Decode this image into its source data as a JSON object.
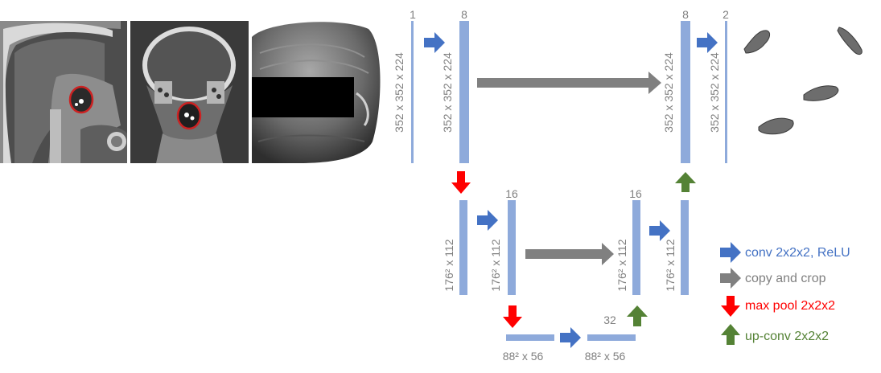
{
  "colors": {
    "bar": "#8eaadb",
    "conv": "#4472c4",
    "copy": "#808080",
    "pool": "#ff0000",
    "up": "#548235",
    "label": "#808080"
  },
  "channels": {
    "input": "1",
    "enc1": "8",
    "enc2": "16",
    "dec2": "16",
    "bottom": "32",
    "dec1": "8",
    "output": "2"
  },
  "dims": {
    "level1": "352 x 352 x 224",
    "level2": "176² x 112",
    "level3": "88² x 56"
  },
  "legend": {
    "conv": "conv 2x2x2, ReLU",
    "copy": "copy and crop",
    "pool": "max pool 2x2x2",
    "up": "up-conv 2x2x2"
  }
}
